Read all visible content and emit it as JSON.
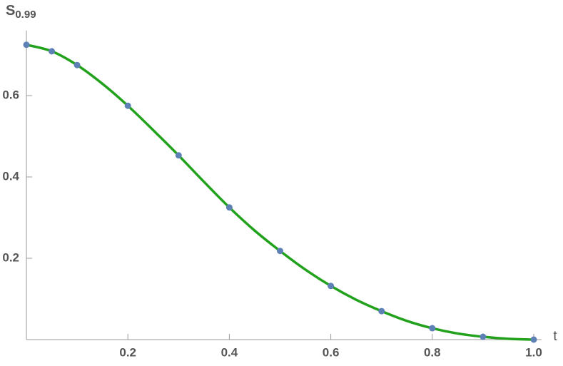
{
  "chart_data": {
    "type": "line",
    "x_label": "t",
    "y_label": "S",
    "y_label_subscript": "0.99",
    "xlim": [
      0,
      1.015
    ],
    "ylim": [
      0,
      0.76
    ],
    "xticks": [
      0.2,
      0.4,
      0.6,
      0.8,
      {
        "value": 1,
        "label": "1.0"
      }
    ],
    "yticks": [
      0.2,
      0.4,
      0.6
    ],
    "series": [
      {
        "style": "line",
        "color": "#22a21c",
        "x": [
          0,
          0.05,
          0.1,
          0.15,
          0.2,
          0.25,
          0.3,
          0.35,
          0.4,
          0.45,
          0.5,
          0.55,
          0.6,
          0.65,
          0.7,
          0.75,
          0.8,
          0.85,
          0.9,
          0.95,
          1
        ],
        "values": [
          0.725,
          0.709,
          0.675,
          0.629,
          0.575,
          0.515,
          0.453,
          0.388,
          0.325,
          0.268,
          0.218,
          0.172,
          0.132,
          0.098,
          0.07,
          0.046,
          0.028,
          0.015,
          0.007,
          0.002,
          0
        ]
      },
      {
        "style": "points",
        "color": "#5e81b5",
        "x": [
          0,
          0.05,
          0.1,
          0.2,
          0.3,
          0.4,
          0.5,
          0.6,
          0.7,
          0.8,
          0.9,
          1
        ],
        "values": [
          0.725,
          0.709,
          0.675,
          0.575,
          0.453,
          0.325,
          0.218,
          0.132,
          0.07,
          0.028,
          0.007,
          0
        ]
      }
    ]
  }
}
